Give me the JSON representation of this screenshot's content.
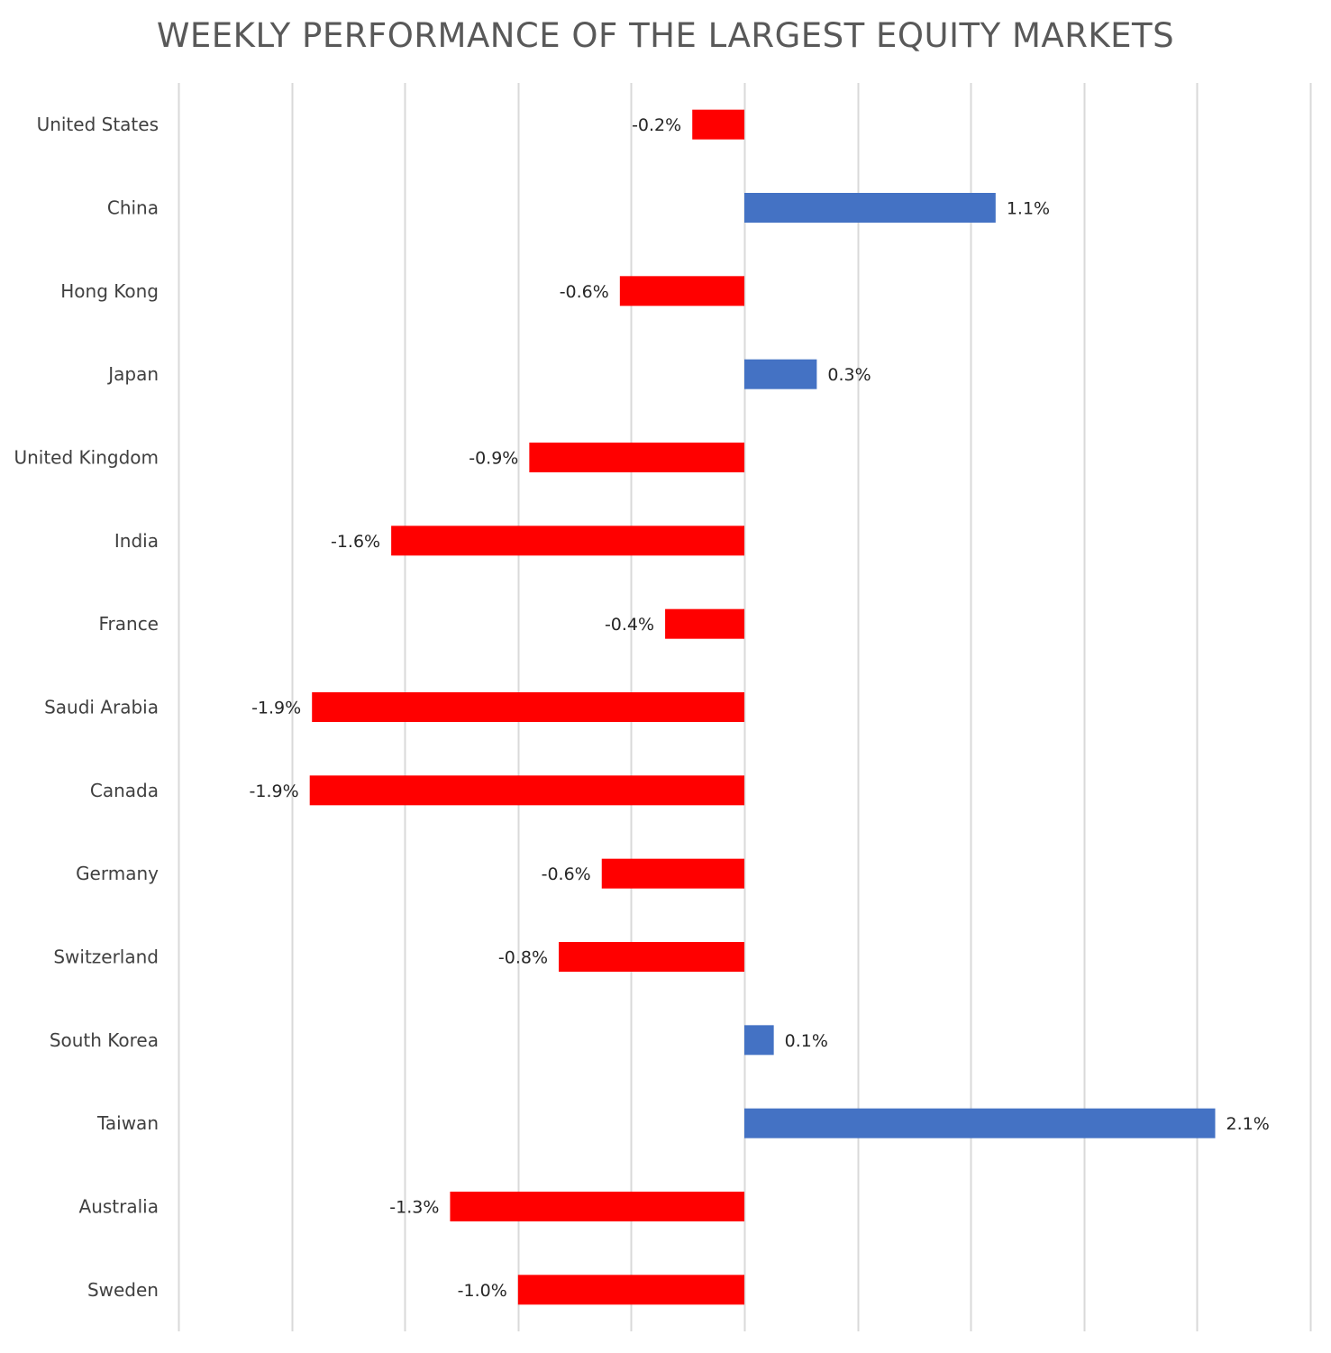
{
  "chart_data": {
    "type": "bar",
    "orientation": "horizontal",
    "title": "WEEKLY PERFORMANCE OF THE LARGEST EQUITY MARKETS",
    "categories": [
      "United States",
      "China",
      "Hong Kong",
      "Japan",
      "United Kingdom",
      "India",
      "France",
      "Saudi Arabia",
      "Canada",
      "Germany",
      "Switzerland",
      "South Korea",
      "Taiwan",
      "Australia",
      "Sweden"
    ],
    "values": [
      -0.23,
      1.11,
      -0.55,
      0.32,
      -0.95,
      -1.56,
      -0.35,
      -1.91,
      -1.92,
      -0.63,
      -0.82,
      0.13,
      2.08,
      -1.3,
      -1.0
    ],
    "labels": [
      "-0.2%",
      "1.1%",
      "-0.6%",
      "0.3%",
      "-0.9%",
      "-1.6%",
      "-0.4%",
      "-1.9%",
      "-1.9%",
      "-0.6%",
      "-0.8%",
      "0.1%",
      "2.1%",
      "-1.3%",
      "-1.0%"
    ],
    "xlim": [
      -2.5,
      2.5
    ],
    "grid": true,
    "legend": "none",
    "colors": {
      "positive": "#4472C4",
      "negative": "#FF0000",
      "grid": "#D9D9D9"
    }
  }
}
